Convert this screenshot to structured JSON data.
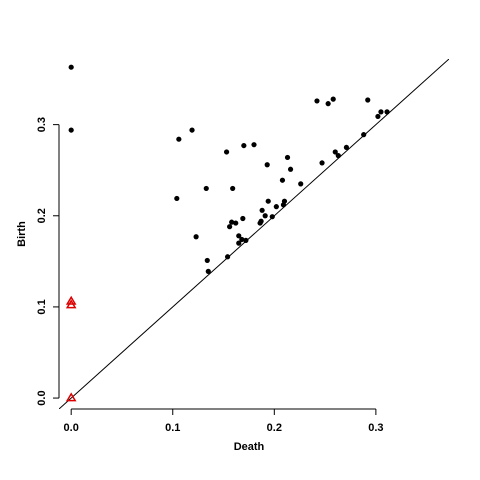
{
  "chart_data": {
    "type": "scatter",
    "xlabel": "Death",
    "ylabel": "Birth",
    "xlim": [
      -0.012,
      0.372
    ],
    "ylim": [
      -0.012,
      0.372
    ],
    "x_ticks": [
      0.0,
      0.1,
      0.2,
      0.3
    ],
    "x_tick_labels": [
      "0.0",
      "0.1",
      "0.2",
      "0.3"
    ],
    "y_ticks": [
      0.0,
      0.1,
      0.2,
      0.3
    ],
    "y_tick_labels": [
      "0.0",
      "0.1",
      "0.2",
      "0.3"
    ],
    "grid": false,
    "diagonal_line": true,
    "series": [
      {
        "marker": "filled-circle",
        "color": "#000000",
        "points": [
          [
            0.0,
            0.363
          ],
          [
            0.0,
            0.294
          ],
          [
            0.104,
            0.219
          ],
          [
            0.106,
            0.284
          ],
          [
            0.119,
            0.294
          ],
          [
            0.123,
            0.177
          ],
          [
            0.133,
            0.23
          ],
          [
            0.134,
            0.151
          ],
          [
            0.135,
            0.139
          ],
          [
            0.153,
            0.27
          ],
          [
            0.154,
            0.155
          ],
          [
            0.156,
            0.188
          ],
          [
            0.158,
            0.193
          ],
          [
            0.159,
            0.23
          ],
          [
            0.162,
            0.192
          ],
          [
            0.165,
            0.17
          ],
          [
            0.165,
            0.178
          ],
          [
            0.168,
            0.174
          ],
          [
            0.169,
            0.197
          ],
          [
            0.17,
            0.277
          ],
          [
            0.172,
            0.173
          ],
          [
            0.18,
            0.278
          ],
          [
            0.186,
            0.192
          ],
          [
            0.187,
            0.194
          ],
          [
            0.188,
            0.206
          ],
          [
            0.191,
            0.2
          ],
          [
            0.193,
            0.256
          ],
          [
            0.194,
            0.216
          ],
          [
            0.198,
            0.199
          ],
          [
            0.202,
            0.21
          ],
          [
            0.208,
            0.239
          ],
          [
            0.209,
            0.212
          ],
          [
            0.21,
            0.216
          ],
          [
            0.213,
            0.264
          ],
          [
            0.216,
            0.251
          ],
          [
            0.226,
            0.235
          ],
          [
            0.242,
            0.326
          ],
          [
            0.247,
            0.258
          ],
          [
            0.253,
            0.323
          ],
          [
            0.258,
            0.328
          ],
          [
            0.26,
            0.27
          ],
          [
            0.263,
            0.266
          ],
          [
            0.271,
            0.275
          ],
          [
            0.288,
            0.289
          ],
          [
            0.292,
            0.327
          ],
          [
            0.302,
            0.309
          ],
          [
            0.305,
            0.314
          ],
          [
            0.311,
            0.314
          ]
        ]
      },
      {
        "marker": "open-triangle",
        "color": "#dd0000",
        "points": [
          [
            0.0,
            0.106
          ],
          [
            0.0,
            0.102
          ],
          [
            0.0,
            0.0
          ]
        ]
      }
    ]
  }
}
